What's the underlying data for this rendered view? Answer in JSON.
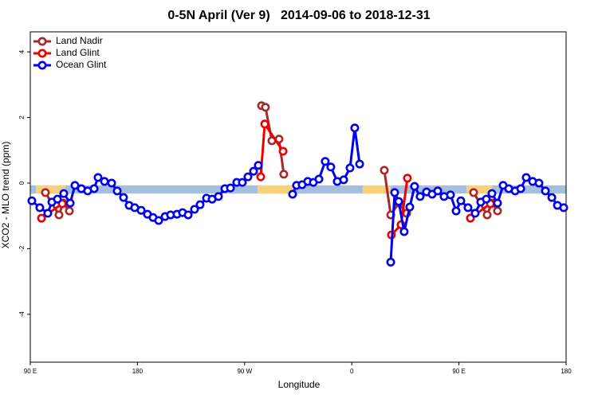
{
  "chart_data": {
    "type": "line",
    "title": "0-5N April (Ver 9)   2014-09-06 to 2018-12-31",
    "xlabel": "Longitude",
    "ylabel": "XCO2 - MLO trend (ppm)",
    "xlim": [
      90,
      540
    ],
    "ylim": [
      -5.46,
      4.61
    ],
    "xticks": [
      {
        "value": 90,
        "label": "90 E"
      },
      180,
      {
        "value": 270,
        "label": "90 W"
      },
      {
        "value": 360,
        "label": "0"
      },
      {
        "value": 450,
        "label": "90 E"
      },
      {
        "value": 540,
        "label": "180"
      }
    ],
    "yticks": [
      -4,
      -2,
      0,
      2,
      4
    ],
    "legend": "top-left",
    "band": {
      "ylim": [
        -0.32,
        -0.07
      ],
      "color": "#a7bfdf",
      "segments": [
        {
          "xlim": [
            94.7,
            119.5
          ],
          "color": "#f8d27a"
        },
        {
          "xlim": [
            280.8,
            312.3
          ],
          "color": "#f8d27a"
        },
        {
          "xlim": [
            369.2,
            392.7
          ],
          "color": "#f8d27a"
        },
        {
          "xlim": [
            456.3,
            477.7
          ],
          "color": "#f8d27a"
        }
      ]
    },
    "series": [
      {
        "name": "Land Nadir",
        "color": "#a52a2a",
        "x": [
          102.7,
          114.1,
          117.5,
          122.8,
          null,
          284.2,
          287.5,
          292.9,
          298.9,
          302.9,
          null,
          387.3,
          392.7,
          399.4,
          406.1,
          null,
          462.3,
          473.7,
          477.7,
          482.4
        ],
        "values": [
          -0.29,
          -0.97,
          -0.61,
          -0.85,
          null,
          2.36,
          2.31,
          1.29,
          1.34,
          0.27,
          null,
          0.39,
          -0.97,
          -0.61,
          -0.92,
          null,
          -0.29,
          -0.97,
          -0.61,
          -0.85
        ]
      },
      {
        "name": "Land Glint",
        "color": "#ee0000",
        "x": [
          99.4,
          116.8,
          null,
          283.5,
          286.9,
          302.3,
          null,
          393.3,
          401.4,
          406.7,
          null,
          459.6,
          476.4
        ],
        "values": [
          -1.07,
          -0.63,
          null,
          0.19,
          1.8,
          0.97,
          null,
          -1.58,
          -1.27,
          0.15,
          null,
          -1.07,
          -0.63
        ]
      },
      {
        "name": "Ocean Glint",
        "color": "#0000ee",
        "x": [
          91.3,
          98,
          104.7,
          108.1,
          112.8,
          118.1,
          123.5,
          127.5,
          132.9,
          138.2,
          143.6,
          146.9,
          152.3,
          158.3,
          163,
          168.3,
          173,
          177.7,
          183.1,
          188.4,
          193.1,
          197.8,
          203.2,
          207.8,
          213.2,
          217.9,
          222.6,
          227.9,
          232.6,
          238,
          242.7,
          248,
          253.4,
          258.1,
          263.4,
          268.1,
          272.8,
          277.5,
          281.5,
          null,
          310.3,
          313.6,
          318.3,
          323,
          327.7,
          332.4,
          337.7,
          342.4,
          347.8,
          353.2,
          358.5,
          362.5,
          366.6,
          null,
          392.7,
          396,
          399.4,
          404,
          408.7,
          412.7,
          417.4,
          422.8,
          427.5,
          432.2,
          437.5,
          442.9,
          447.6,
          451.6,
          457.6,
          463.6,
          468.3,
          473,
          477.7,
          482.4,
          487.1,
          491.8,
          497.2,
          501.9,
          506.5,
          511.9,
          517.2,
          522.6,
          528,
          532.7,
          538
        ],
        "values": [
          -0.54,
          -0.75,
          -0.92,
          -0.58,
          -0.49,
          -0.32,
          -0.61,
          -0.07,
          -0.17,
          -0.24,
          -0.17,
          0.17,
          0.05,
          0,
          -0.24,
          -0.44,
          -0.68,
          -0.75,
          -0.83,
          -0.95,
          -1.05,
          -1.14,
          -1.02,
          -0.97,
          -0.95,
          -0.9,
          -0.97,
          -0.8,
          -0.66,
          -0.46,
          -0.49,
          -0.41,
          -0.17,
          -0.15,
          0.02,
          0.02,
          0.19,
          0.36,
          0.54,
          null,
          -0.34,
          -0.07,
          -0.05,
          0.05,
          0.02,
          0.12,
          0.66,
          0.49,
          0.05,
          0.1,
          0.46,
          1.68,
          0.58,
          null,
          -2.41,
          -0.29,
          -0.56,
          -1.48,
          -0.73,
          -0.1,
          -0.41,
          -0.27,
          -0.34,
          -0.24,
          -0.41,
          -0.36,
          -0.85,
          -0.54,
          -0.75,
          -0.92,
          -0.58,
          -0.49,
          -0.32,
          -0.61,
          -0.07,
          -0.17,
          -0.24,
          -0.17,
          0.17,
          0.05,
          0,
          -0.24,
          -0.44,
          -0.68,
          -0.75
        ]
      }
    ]
  }
}
